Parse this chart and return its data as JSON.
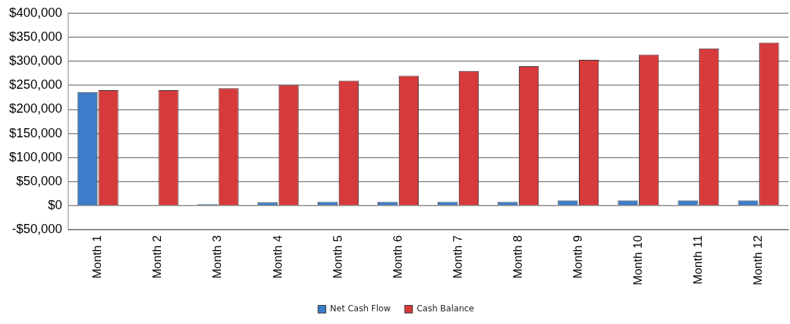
{
  "chart_data": {
    "type": "bar",
    "categories": [
      "Month 1",
      "Month 2",
      "Month 3",
      "Month 4",
      "Month 5",
      "Month 6",
      "Month 7",
      "Month 8",
      "Month 9",
      "Month 10",
      "Month 11",
      "Month 12"
    ],
    "series": [
      {
        "name": "Net Cash Flow",
        "color": "#3d7cc9",
        "values": [
          236000,
          -1000,
          3000,
          7000,
          8000,
          8000,
          8000,
          8000,
          11000,
          11000,
          11000,
          11000
        ]
      },
      {
        "name": "Cash Balance",
        "color": "#d63a3a",
        "values": [
          240000,
          240000,
          244000,
          251000,
          260000,
          270000,
          280000,
          290000,
          303000,
          314000,
          327000,
          339000
        ]
      }
    ],
    "ylim": [
      -50000,
      400000
    ],
    "yticks": [
      {
        "value": -50000,
        "label": "-$50,000"
      },
      {
        "value": 0,
        "label": "$0"
      },
      {
        "value": 50000,
        "label": "$50,000"
      },
      {
        "value": 100000,
        "label": "$100,000"
      },
      {
        "value": 150000,
        "label": "$150,000"
      },
      {
        "value": 200000,
        "label": "$200,000"
      },
      {
        "value": 250000,
        "label": "$250,000"
      },
      {
        "value": 300000,
        "label": "$300,000"
      },
      {
        "value": 350000,
        "label": "$350,000"
      },
      {
        "value": 400000,
        "label": "$400,000"
      }
    ],
    "grid": "y",
    "legend": "bottom"
  }
}
